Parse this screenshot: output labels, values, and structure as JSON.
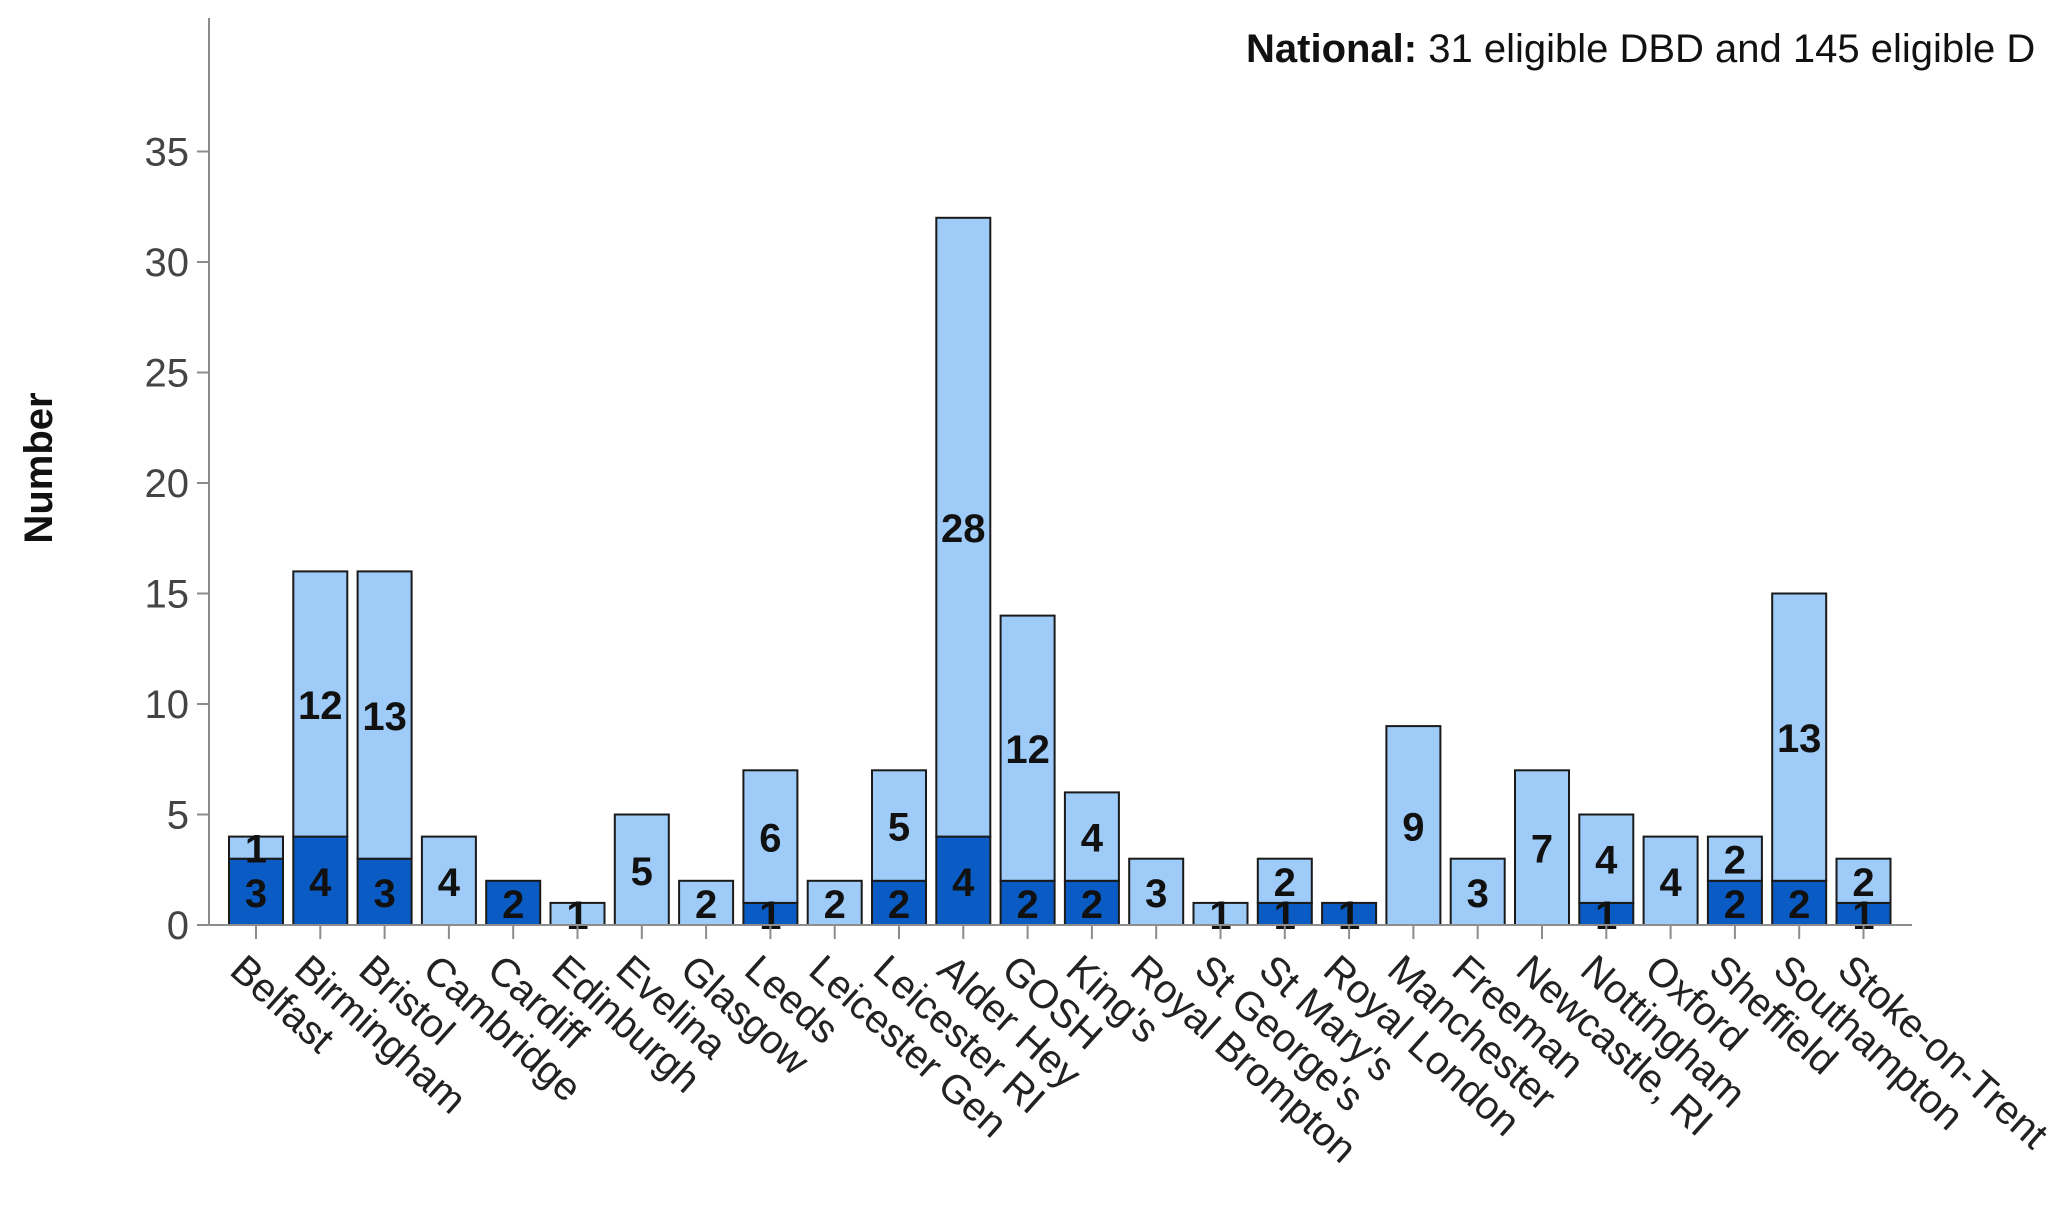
{
  "chart_data": {
    "type": "bar",
    "stacked": true,
    "ylabel": "Number",
    "xlabel": "",
    "ylim": [
      0,
      38
    ],
    "yticks": [
      0,
      5,
      10,
      15,
      20,
      25,
      30,
      35
    ],
    "grid": false,
    "annotation": {
      "bold": "National:",
      "text": " 31 eligible DBD and 145 eligible D"
    },
    "categories": [
      "Belfast",
      "Birmingham",
      "Bristol",
      "Cambridge",
      "Cardiff",
      "Edinburgh",
      "Evelina",
      "Glasgow",
      "Leeds",
      "Leicester Gen",
      "Leicester RI",
      "Alder Hey",
      "GOSH",
      "King's",
      "Royal Brompton",
      "St George's",
      "St Mary's",
      "Royal London",
      "Manchester",
      "Freeman",
      "Newcastle, RI",
      "Nottingham",
      "Oxford",
      "Sheffield",
      "Southampton",
      "Stoke-on-Trent"
    ],
    "series": [
      {
        "values": [
          3,
          4,
          3,
          0,
          2,
          0,
          0,
          0,
          1,
          0,
          2,
          4,
          2,
          2,
          0,
          0,
          1,
          1,
          0,
          0,
          0,
          1,
          0,
          2,
          2,
          1
        ],
        "color": "#0a5cc4"
      },
      {
        "values": [
          1,
          12,
          13,
          4,
          0,
          1,
          5,
          2,
          6,
          2,
          5,
          28,
          12,
          4,
          3,
          1,
          2,
          0,
          9,
          3,
          7,
          4,
          4,
          2,
          13,
          2
        ],
        "color": "#9ecbf8"
      }
    ]
  }
}
